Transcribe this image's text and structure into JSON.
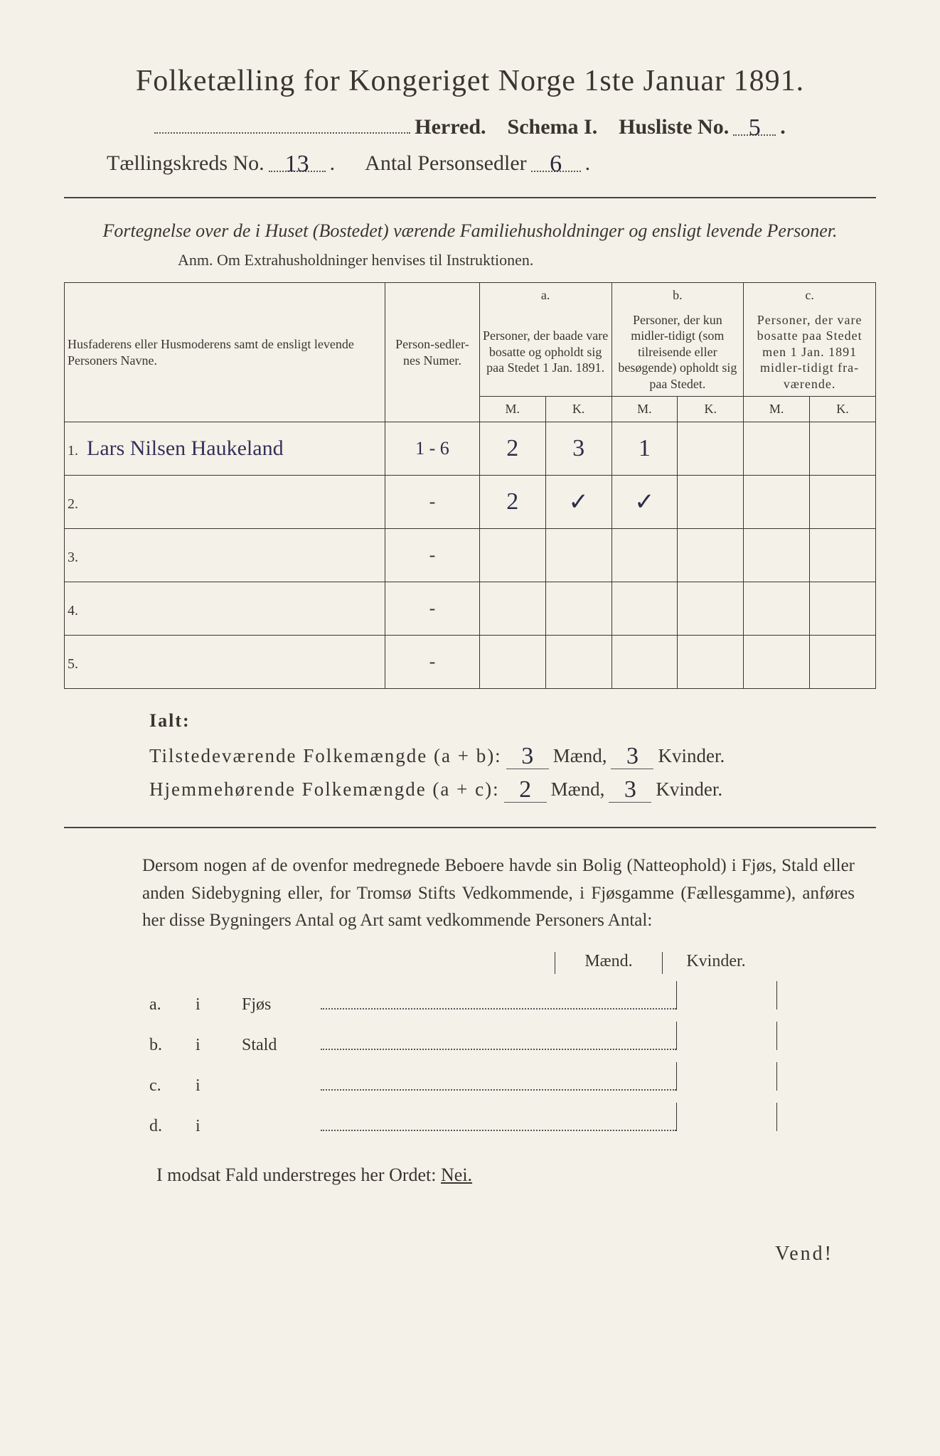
{
  "title": "Folketælling for Kongeriget Norge 1ste Januar 1891.",
  "header": {
    "herred_label": "Herred.",
    "schema_label": "Schema I.",
    "husliste_label": "Husliste No.",
    "husliste_value": "5",
    "kreds_label": "Tællingskreds No.",
    "kreds_value": "13",
    "antal_label": "Antal Personsedler",
    "antal_value": "6"
  },
  "subtitle": "Fortegnelse over de i Huset (Bostedet) værende Familiehusholdninger og ensligt levende Personer.",
  "anm": "Anm.  Om Extrahusholdninger henvises til Instruktionen.",
  "table": {
    "head_name": "Husfaderens eller Husmoderens samt de ensligt levende Personers Navne.",
    "head_num": "Person-sedler-nes Numer.",
    "head_a_top": "a.",
    "head_a": "Personer, der baade vare bosatte og opholdt sig paa Stedet 1 Jan. 1891.",
    "head_b_top": "b.",
    "head_b": "Personer, der kun midler-tidigt (som tilreisende eller besøgende) opholdt sig paa Stedet.",
    "head_c_top": "c.",
    "head_c": "Personer, der vare bosatte paa Stedet men 1 Jan. 1891 midler-tidigt fra-værende.",
    "m": "M.",
    "k": "K.",
    "rows": [
      {
        "n": "1.",
        "name": "Lars Nilsen Haukeland",
        "num": "1 - 6",
        "aM": "2",
        "aK": "3",
        "bM": "1",
        "bK": "",
        "cM": "",
        "cK": ""
      },
      {
        "n": "2.",
        "name": "",
        "num": "-",
        "aM": "2",
        "aK": "✓",
        "bM": "✓",
        "bK": "",
        "cM": "",
        "cK": ""
      },
      {
        "n": "3.",
        "name": "",
        "num": "-",
        "aM": "",
        "aK": "",
        "bM": "",
        "bK": "",
        "cM": "",
        "cK": ""
      },
      {
        "n": "4.",
        "name": "",
        "num": "-",
        "aM": "",
        "aK": "",
        "bM": "",
        "bK": "",
        "cM": "",
        "cK": ""
      },
      {
        "n": "5.",
        "name": "",
        "num": "-",
        "aM": "",
        "aK": "",
        "bM": "",
        "bK": "",
        "cM": "",
        "cK": ""
      }
    ]
  },
  "ialt": {
    "heading": "Ialt:",
    "line1_label": "Tilstedeværende Folkemængde (a + b):",
    "line1_m": "3",
    "line1_k": "3",
    "line2_label": "Hjemmehørende Folkemængde (a + c):",
    "line2_m": "2",
    "line2_k": "3",
    "maend": "Mænd,",
    "kvinder": "Kvinder."
  },
  "para": "Dersom nogen af de ovenfor medregnede Beboere havde sin Bolig (Natteophold) i Fjøs, Stald eller anden Sidebygning eller, for Tromsø Stifts Vedkommende, i Fjøsgamme (Fællesgamme), anføres her disse Bygningers Antal og Art samt vedkommende Personers Antal:",
  "side": {
    "maend": "Mænd.",
    "kvinder": "Kvinder.",
    "rows": [
      {
        "a": "a.",
        "i": "i",
        "label": "Fjøs"
      },
      {
        "a": "b.",
        "i": "i",
        "label": "Stald"
      },
      {
        "a": "c.",
        "i": "i",
        "label": ""
      },
      {
        "a": "d.",
        "i": "i",
        "label": ""
      }
    ]
  },
  "nei_line_pre": "I modsat Fald understreges her Ordet:",
  "nei": "Nei.",
  "vend": "Vend!",
  "colors": {
    "paper": "#f4f2e8",
    "ink": "#3a3530",
    "handwriting": "#2c2c4a"
  }
}
